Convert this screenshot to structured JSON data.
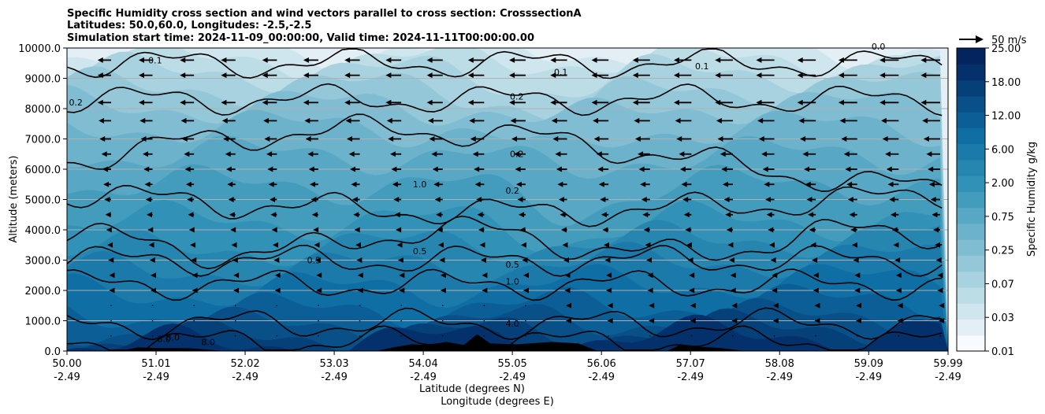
{
  "chart_data": {
    "type": "heatmap",
    "title_lines": [
      "Specific Humidity cross section and wind vectors parallel to cross section: CrosssectionA",
      "Latitudes: 50.0,60.0, Longitudes: -2.5,-2.5",
      "Simulation start time: 2024-11-09_00:00:00, Valid time: 2024-11-11T00:00:00.00"
    ],
    "xlabel_lines": [
      "Latitude (degrees N)",
      "Longitude (degrees E)"
    ],
    "ylabel": "Altitude (meters)",
    "x_range": [
      50.0,
      59.99
    ],
    "y_range": [
      0,
      10000
    ],
    "x_ticks": [
      {
        "value": 50.0,
        "lat": "50.00",
        "lon": "-2.49"
      },
      {
        "value": 51.01,
        "lat": "51.01",
        "lon": "-2.49"
      },
      {
        "value": 52.02,
        "lat": "52.02",
        "lon": "-2.49"
      },
      {
        "value": 53.03,
        "lat": "53.03",
        "lon": "-2.49"
      },
      {
        "value": 54.04,
        "lat": "54.04",
        "lon": "-2.49"
      },
      {
        "value": 55.05,
        "lat": "55.05",
        "lon": "-2.49"
      },
      {
        "value": 56.06,
        "lat": "56.06",
        "lon": "-2.49"
      },
      {
        "value": 57.07,
        "lat": "57.07",
        "lon": "-2.49"
      },
      {
        "value": 58.08,
        "lat": "58.08",
        "lon": "-2.49"
      },
      {
        "value": 59.09,
        "lat": "59.09",
        "lon": "-2.49"
      },
      {
        "value": 59.99,
        "lat": "59.99",
        "lon": "-2.49"
      }
    ],
    "y_ticks": [
      {
        "value": 0,
        "label": "0.0"
      },
      {
        "value": 1000,
        "label": "1000.0"
      },
      {
        "value": 2000,
        "label": "2000.0"
      },
      {
        "value": 3000,
        "label": "3000.0"
      },
      {
        "value": 4000,
        "label": "4000.0"
      },
      {
        "value": 5000,
        "label": "5000.0"
      },
      {
        "value": 6000,
        "label": "6000.0"
      },
      {
        "value": 7000,
        "label": "7000.0"
      },
      {
        "value": 8000,
        "label": "8000.0"
      },
      {
        "value": 9000,
        "label": "9000.0"
      },
      {
        "value": 10000,
        "label": "10000.0"
      }
    ],
    "grid": true,
    "colorbar": {
      "label": "Specific Humidity g/kg",
      "levels": [
        0.01,
        0.02,
        0.03,
        0.05,
        0.07,
        0.1,
        0.25,
        0.5,
        0.75,
        1.0,
        2.0,
        4.0,
        6.0,
        8.0,
        12.0,
        15.0,
        18.0,
        21.0,
        25.0
      ],
      "tick_labels": [
        "0.01",
        "0.03",
        "0.07",
        "0.25",
        "0.75",
        "2.00",
        "6.00",
        "12.00",
        "18.00",
        "25.00"
      ],
      "colors": [
        "#f7fbff",
        "#e3eff5",
        "#d0e6ee",
        "#bcdce6",
        "#a8d2df",
        "#94c8d8",
        "#80bdd2",
        "#6cb2cb",
        "#58a7c4",
        "#449cbd",
        "#3291b6",
        "#2786b0",
        "#1b7aaa",
        "#0f6ea4",
        "#0b5f96",
        "#085087",
        "#064079",
        "#04316b",
        "#03245e"
      ]
    },
    "wind_reference": {
      "label": "50 m/s",
      "speed": 50
    },
    "contour_labels": [
      {
        "text": "0.1",
        "lat": 51.0,
        "alt": 9500
      },
      {
        "text": "0.1",
        "lat": 55.6,
        "alt": 9100
      },
      {
        "text": "0.1",
        "lat": 57.2,
        "alt": 9300
      },
      {
        "text": "0.0",
        "lat": 59.2,
        "alt": 9950
      },
      {
        "text": "0.2",
        "lat": 50.1,
        "alt": 8100
      },
      {
        "text": "0.2",
        "lat": 55.1,
        "alt": 8300
      },
      {
        "text": "0.2",
        "lat": 55.1,
        "alt": 6400
      },
      {
        "text": "0.2",
        "lat": 55.05,
        "alt": 5200
      },
      {
        "text": "1.0",
        "lat": 54.0,
        "alt": 5400
      },
      {
        "text": "0.5",
        "lat": 52.8,
        "alt": 2900
      },
      {
        "text": "0.5",
        "lat": 54.0,
        "alt": 3200
      },
      {
        "text": "0.5",
        "lat": 55.05,
        "alt": 2750
      },
      {
        "text": "1.0",
        "lat": 55.05,
        "alt": 2200
      },
      {
        "text": "4.0",
        "lat": 55.05,
        "alt": 800
      },
      {
        "text": "8.0",
        "lat": 51.2,
        "alt": 350
      },
      {
        "text": "8.0",
        "lat": 51.1,
        "alt": 300
      },
      {
        "text": "8.0",
        "lat": 51.6,
        "alt": 200
      }
    ],
    "contour_levels": [
      0.1,
      0.2,
      0.5,
      1.0,
      4.0,
      8.0
    ],
    "terrain_alt_m": [
      {
        "lat": 50.0,
        "alt": 0
      },
      {
        "lat": 50.6,
        "alt": 0
      },
      {
        "lat": 50.8,
        "alt": 120
      },
      {
        "lat": 51.0,
        "alt": 100
      },
      {
        "lat": 51.4,
        "alt": 90
      },
      {
        "lat": 51.8,
        "alt": 0
      },
      {
        "lat": 53.5,
        "alt": 0
      },
      {
        "lat": 53.7,
        "alt": 120
      },
      {
        "lat": 53.9,
        "alt": 220
      },
      {
        "lat": 54.1,
        "alt": 200
      },
      {
        "lat": 54.3,
        "alt": 300
      },
      {
        "lat": 54.5,
        "alt": 200
      },
      {
        "lat": 54.65,
        "alt": 550
      },
      {
        "lat": 54.8,
        "alt": 250
      },
      {
        "lat": 55.1,
        "alt": 220
      },
      {
        "lat": 55.5,
        "alt": 300
      },
      {
        "lat": 55.8,
        "alt": 250
      },
      {
        "lat": 56.0,
        "alt": 20
      },
      {
        "lat": 56.8,
        "alt": 0
      },
      {
        "lat": 56.95,
        "alt": 200
      },
      {
        "lat": 57.1,
        "alt": 150
      },
      {
        "lat": 57.4,
        "alt": 100
      },
      {
        "lat": 57.7,
        "alt": 0
      },
      {
        "lat": 59.99,
        "alt": 0
      }
    ],
    "wind_u_ms_by_altitude": [
      {
        "alt": 9600,
        "u": -14
      },
      {
        "alt": 9100,
        "u": -14
      },
      {
        "alt": 8200,
        "u": -14
      },
      {
        "alt": 7600,
        "u": -13
      },
      {
        "alt": 7000,
        "u": -12
      },
      {
        "alt": 6500,
        "u": -10
      },
      {
        "alt": 6000,
        "u": -9
      },
      {
        "alt": 5500,
        "u": -8
      },
      {
        "alt": 5000,
        "u": -7
      },
      {
        "alt": 4500,
        "u": -6
      },
      {
        "alt": 4000,
        "u": -5
      },
      {
        "alt": 3500,
        "u": -4
      },
      {
        "alt": 3000,
        "u": -3
      },
      {
        "alt": 2500,
        "u": -2
      },
      {
        "alt": 2000,
        "u": -2
      },
      {
        "alt": 1500,
        "u": -1
      },
      {
        "alt": 1000,
        "u": -1
      },
      {
        "alt": 500,
        "u": 0
      }
    ]
  }
}
